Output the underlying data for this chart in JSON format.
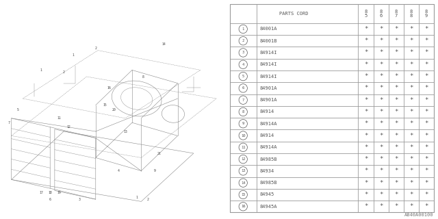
{
  "diagram_ref": "A840A00100",
  "bg_color": "#ffffff",
  "parts": [
    {
      "num": 1,
      "code": "84001A"
    },
    {
      "num": 2,
      "code": "84001B"
    },
    {
      "num": 3,
      "code": "84914I"
    },
    {
      "num": 4,
      "code": "84914I"
    },
    {
      "num": 5,
      "code": "84914I"
    },
    {
      "num": 6,
      "code": "84901A"
    },
    {
      "num": 7,
      "code": "84901A"
    },
    {
      "num": 8,
      "code": "84914"
    },
    {
      "num": 9,
      "code": "84914A"
    },
    {
      "num": 10,
      "code": "84914"
    },
    {
      "num": 11,
      "code": "84914A"
    },
    {
      "num": 12,
      "code": "84985B"
    },
    {
      "num": 13,
      "code": "84934"
    },
    {
      "num": 14,
      "code": "84985B"
    },
    {
      "num": 15,
      "code": "84945"
    },
    {
      "num": 16,
      "code": "84945A"
    }
  ],
  "years": [
    "85",
    "86",
    "87",
    "88",
    "89"
  ],
  "star": "*",
  "line_color": "#999999",
  "text_color": "#555555",
  "font_size": 5.0,
  "header_font_size": 5.0,
  "circle_font_size": 4.0
}
